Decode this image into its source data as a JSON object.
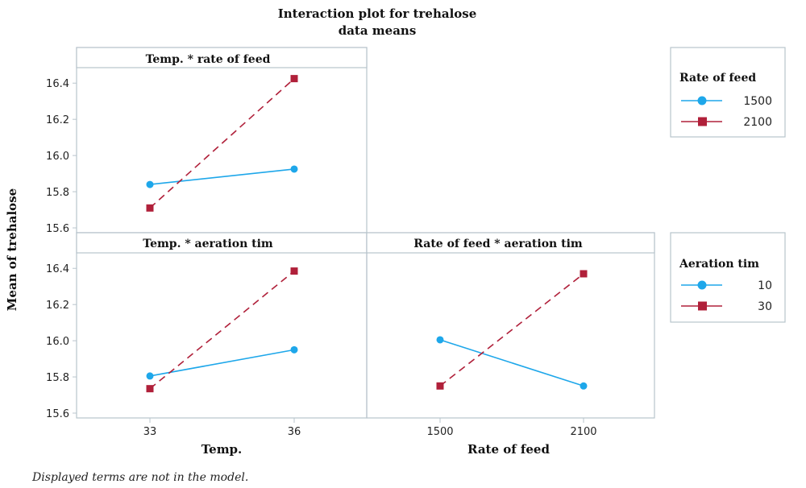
{
  "colors": {
    "series_solid": "#1ea7ea",
    "series_dashed": "#b0203a",
    "frame": "#b8c4cc"
  },
  "title_line1": "Interaction plot for trehalose",
  "title_line2": "data means",
  "y_axis_label": "Mean of trehalose",
  "y_ticks": [
    "15.6",
    "15.8",
    "16.0",
    "16.2",
    "16.4"
  ],
  "footnote": "Displayed terms are not in the model.",
  "legends": [
    {
      "title": "Rate of feed",
      "items": [
        {
          "label": "1500",
          "marker": "circle"
        },
        {
          "label": "2100",
          "marker": "square"
        }
      ]
    },
    {
      "title": "Aeration tim",
      "items": [
        {
          "label": "10",
          "marker": "circle"
        },
        {
          "label": "30",
          "marker": "square"
        }
      ]
    }
  ],
  "chart_data": [
    {
      "type": "line",
      "title": "Temp. * rate of feed",
      "categories": [
        "33",
        "36"
      ],
      "ylim": [
        15.6,
        16.45
      ],
      "series": [
        {
          "name": "1500",
          "values": [
            15.84,
            15.925
          ],
          "style": "solid",
          "marker": "circle"
        },
        {
          "name": "2100",
          "values": [
            15.71,
            16.425
          ],
          "style": "dashed",
          "marker": "square"
        }
      ]
    },
    {
      "type": "line",
      "title": "Temp. * aeration tim",
      "xlabel": "Temp.",
      "categories": [
        "33",
        "36"
      ],
      "ylim": [
        15.6,
        16.45
      ],
      "series": [
        {
          "name": "10",
          "values": [
            15.805,
            15.95
          ],
          "style": "solid",
          "marker": "circle"
        },
        {
          "name": "30",
          "values": [
            15.735,
            16.385
          ],
          "style": "dashed",
          "marker": "square"
        }
      ]
    },
    {
      "type": "line",
      "title": "Rate of feed * aeration tim",
      "xlabel": "Rate of feed",
      "categories": [
        "1500",
        "2100"
      ],
      "ylim": [
        15.6,
        16.45
      ],
      "series": [
        {
          "name": "10",
          "values": [
            16.005,
            15.75
          ],
          "style": "solid",
          "marker": "circle"
        },
        {
          "name": "30",
          "values": [
            15.75,
            16.37
          ],
          "style": "dashed",
          "marker": "square"
        }
      ]
    }
  ]
}
